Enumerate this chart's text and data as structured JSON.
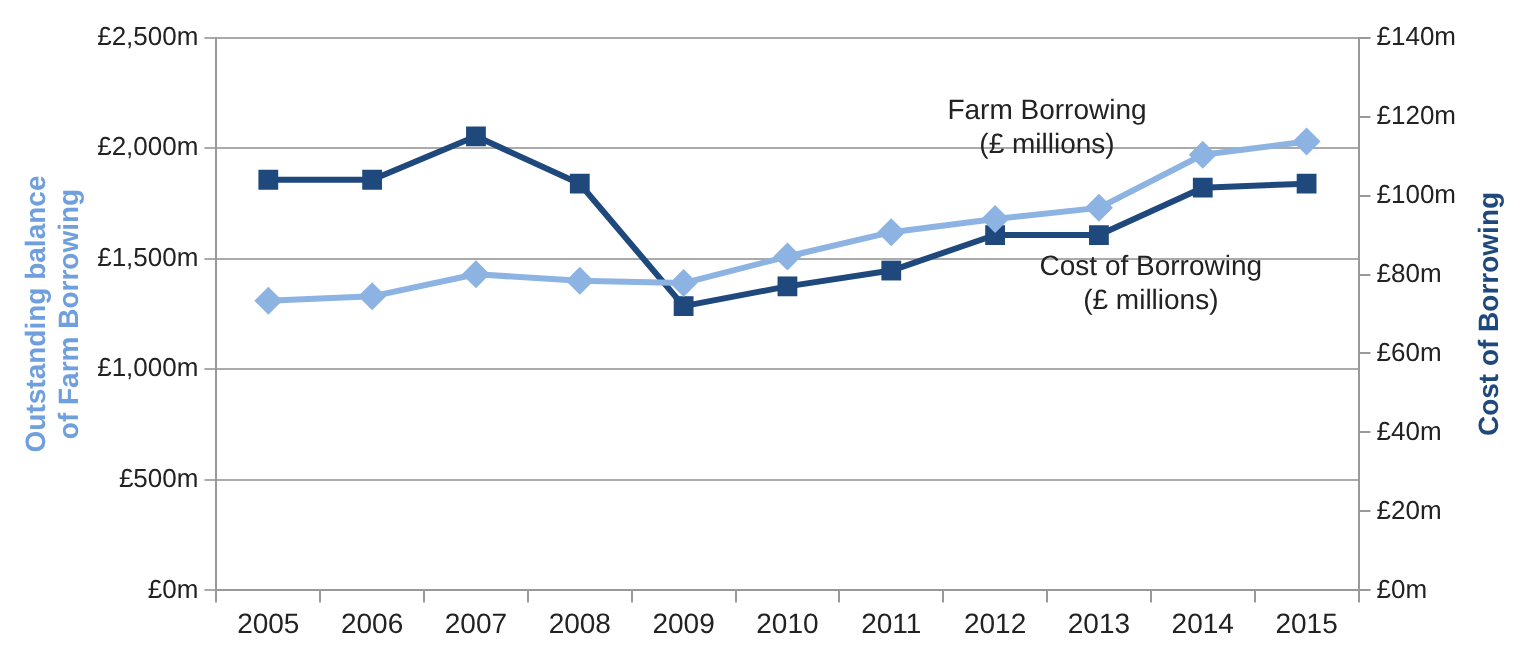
{
  "chart_data": {
    "type": "line",
    "categories": [
      "2005",
      "2006",
      "2007",
      "2008",
      "2009",
      "2010",
      "2011",
      "2012",
      "2013",
      "2014",
      "2015"
    ],
    "series": [
      {
        "name": "Farm Borrowing (£ millions)",
        "color": "#8db3e2",
        "marker": "diamond",
        "values": [
          1310,
          1330,
          1430,
          1400,
          1390,
          1510,
          1620,
          1680,
          1730,
          1970,
          2030
        ]
      },
      {
        "name": "Cost of Borrowing (£ millions)",
        "color": "#1f497d",
        "marker": "square",
        "axis": "y2",
        "values": [
          104,
          104,
          115,
          103,
          72,
          77,
          81,
          90,
          90,
          102,
          103
        ]
      }
    ],
    "ylabel": "Outstanding balance of Farm Borrowing",
    "y2label": "Cost of Borrowing",
    "ylim": [
      0,
      2500
    ],
    "yticks": [
      {
        "value": 0,
        "label": "£0m"
      },
      {
        "value": 500,
        "label": "£500m"
      },
      {
        "value": 1000,
        "label": "£1,000m"
      },
      {
        "value": 1500,
        "label": "£1,500m"
      },
      {
        "value": 2000,
        "label": "£2,000m"
      },
      {
        "value": 2500,
        "label": "£2,500m"
      }
    ],
    "y2lim": [
      0,
      140
    ],
    "y2ticks": [
      {
        "value": 0,
        "label": "£0m"
      },
      {
        "value": 20,
        "label": "£20m"
      },
      {
        "value": 40,
        "label": "£40m"
      },
      {
        "value": 60,
        "label": "£60m"
      },
      {
        "value": 80,
        "label": "£80m"
      },
      {
        "value": 100,
        "label": "£100m"
      },
      {
        "value": 120,
        "label": "£120m"
      },
      {
        "value": 140,
        "label": "£140m"
      }
    ],
    "grid": "y",
    "legend": false,
    "line_style": "solid"
  }
}
